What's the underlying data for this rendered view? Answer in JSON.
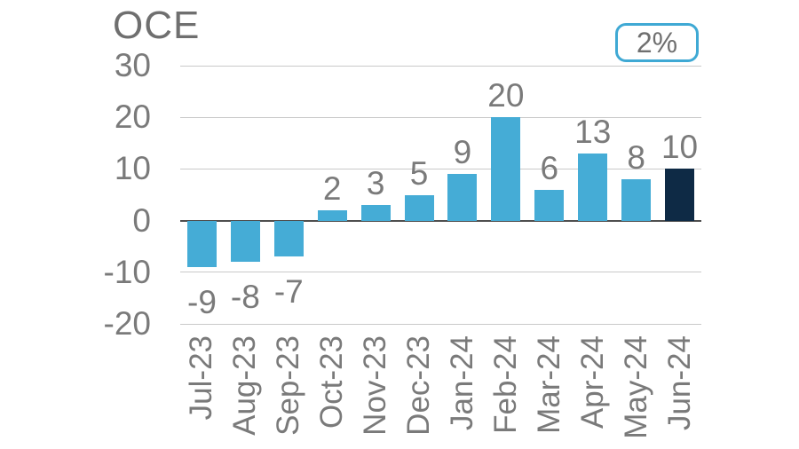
{
  "badge": {
    "label": "2%"
  },
  "chart_data": {
    "type": "bar",
    "title": "OCE",
    "categories": [
      "Jul-23",
      "Aug-23",
      "Sep-23",
      "Oct-23",
      "Nov-23",
      "Dec-23",
      "Jan-24",
      "Feb-24",
      "Mar-24",
      "Apr-24",
      "May-24",
      "Jun-24"
    ],
    "values": [
      -9,
      -8,
      -7,
      2,
      3,
      5,
      9,
      20,
      6,
      13,
      8,
      10
    ],
    "bar_labels": [
      "-9",
      "-8",
      "-7",
      "2",
      "3",
      "5",
      "9",
      "20",
      "6",
      "13",
      "8",
      "10"
    ],
    "y_ticks": [
      30,
      20,
      10,
      0,
      -10,
      -20
    ],
    "ylim": [
      -20,
      30
    ],
    "xlabel": "",
    "ylabel": "",
    "legend_position": "none",
    "grid": "horizontal",
    "highlight_index": 11,
    "colors": {
      "bar": "#45acd6",
      "highlight_bar": "#0e2a45",
      "gridline": "#c9c9c9",
      "zero_line": "#4f4f4f",
      "text": "#7a7a7a",
      "badge_border": "#3fa9d4"
    }
  }
}
